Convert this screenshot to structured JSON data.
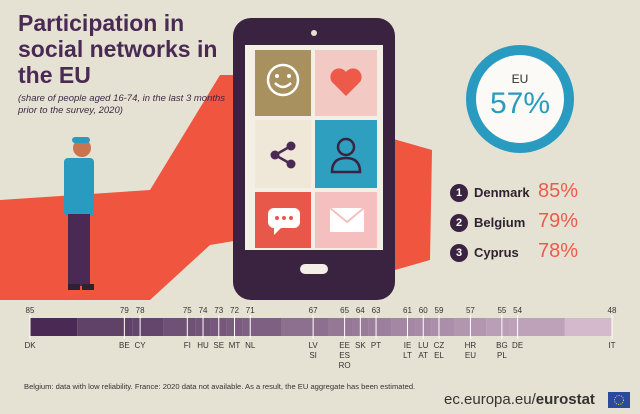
{
  "title": "Participation in social networks in the EU",
  "subtitle": "(share of people aged 16-74, in the last 3 months prior to the survey, 2020)",
  "eu": {
    "label": "EU",
    "value": "57%",
    "fraction": 0.57
  },
  "top3": [
    {
      "rank": "1",
      "country": "Denmark",
      "value": "85%"
    },
    {
      "rank": "2",
      "country": "Belgium",
      "value": "79%"
    },
    {
      "rank": "3",
      "country": "Cyprus",
      "value": "78%"
    }
  ],
  "footnote": "Belgium: data with low reliability. France: 2020 data not available. As a result, the EU aggregate has been estimated.",
  "source": {
    "domain": "ec.europa.eu/",
    "brand": "eurostat"
  },
  "colors": {
    "dark": "#4a2a55",
    "accent": "#ee5a4a",
    "eu_blue": "#2a9bc0",
    "background": "#e6e2d3",
    "hand": "#f0553f"
  },
  "icons": [
    "smiley-icon",
    "heart-icon",
    "share-icon",
    "person-icon",
    "chat-bubble-icon",
    "envelope-icon",
    "person-with-phone-illustration",
    "hand-holding-phone-illustration"
  ],
  "chart_data": {
    "type": "bar",
    "value_labels": [
      "85",
      "79",
      "78",
      "75",
      "74",
      "73",
      "72",
      "71",
      "67",
      "65",
      "64",
      "63",
      "61",
      "60",
      "59",
      "57",
      "55",
      "54",
      "48"
    ],
    "groups": [
      {
        "value": 85,
        "labels": [
          "DK"
        ]
      },
      {
        "value": 79,
        "labels": [
          "BE"
        ]
      },
      {
        "value": 78,
        "labels": [
          "CY"
        ]
      },
      {
        "value": 75,
        "labels": [
          "FI"
        ]
      },
      {
        "value": 74,
        "labels": [
          "HU"
        ]
      },
      {
        "value": 73,
        "labels": [
          "SE"
        ]
      },
      {
        "value": 72,
        "labels": [
          "MT"
        ]
      },
      {
        "value": 71,
        "labels": [
          "NL"
        ]
      },
      {
        "value": 67,
        "labels": [
          "LV",
          "SI"
        ]
      },
      {
        "value": 65,
        "labels": [
          "EE",
          "ES",
          "RO"
        ]
      },
      {
        "value": 64,
        "labels": [
          "SK"
        ]
      },
      {
        "value": 63,
        "labels": [
          "PT"
        ]
      },
      {
        "value": 61,
        "labels": [
          "IE",
          "LT"
        ]
      },
      {
        "value": 60,
        "labels": [
          "LU",
          "AT"
        ]
      },
      {
        "value": 59,
        "labels": [
          "CZ",
          "EL"
        ]
      },
      {
        "value": 57,
        "labels": [
          "HR",
          "EU"
        ]
      },
      {
        "value": 55,
        "labels": [
          "BG",
          "PL"
        ]
      },
      {
        "value": 54,
        "labels": [
          "DE"
        ]
      },
      {
        "value": 48,
        "labels": [
          "IT"
        ]
      }
    ],
    "xlim": [
      48,
      85
    ]
  }
}
